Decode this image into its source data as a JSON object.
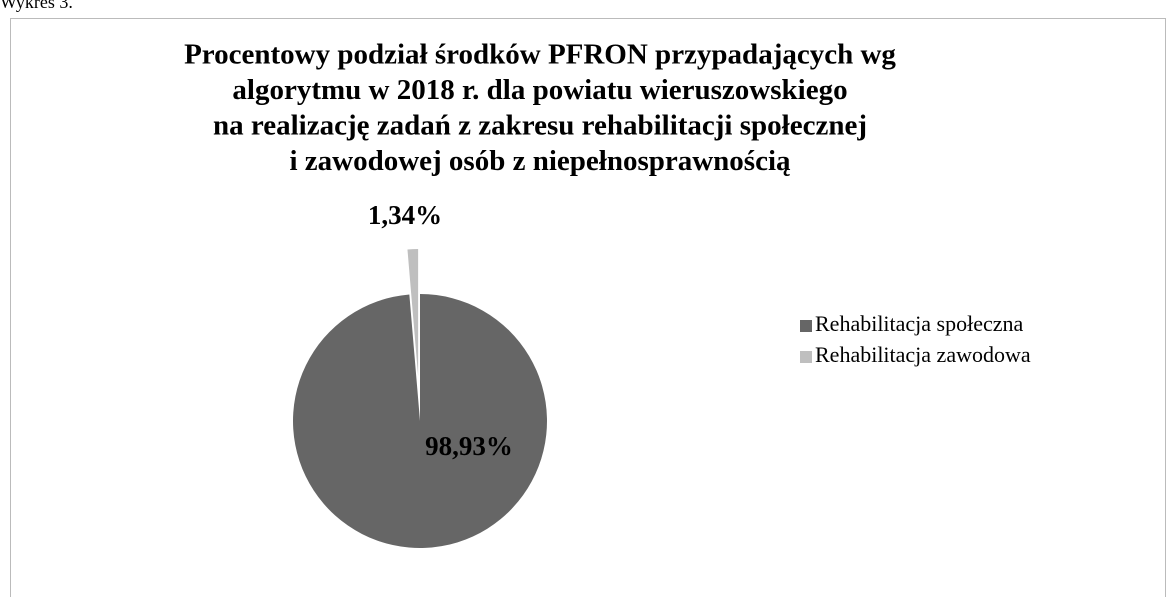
{
  "caption": "Wykres 3.",
  "chart_data": {
    "type": "pie",
    "title": [
      "Procentowy podział środków PFRON przypadających wg",
      "algorytmu w 2018 r. dla powiatu wieruszowskiego",
      "na realizację zadań z zakresu rehabilitacji społecznej",
      "i zawodowej osób z niepełnosprawnością"
    ],
    "categories": [
      "Rehabilitacja społeczna",
      "Rehabilitacja zawodowa"
    ],
    "values": [
      98.93,
      1.34
    ],
    "value_labels": [
      "98,93%",
      "1,34%"
    ],
    "colors": [
      "#666666",
      "#bfbfbf"
    ],
    "legend": "right"
  }
}
